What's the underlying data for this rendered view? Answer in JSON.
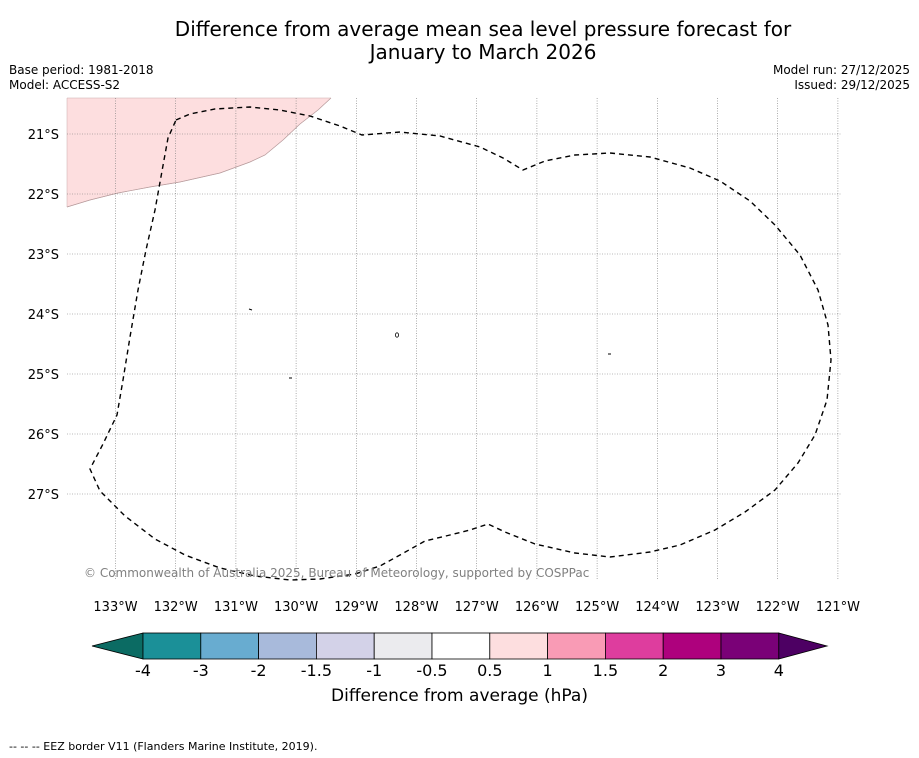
{
  "title": {
    "line1": "Difference from average mean sea level pressure forecast for",
    "line2": "January to March 2026"
  },
  "meta": {
    "base_period": "Base period: 1981-2018",
    "model": "Model: ACCESS-S2",
    "model_run": "Model run: 27/12/2025",
    "issued": "Issued: 29/12/2025"
  },
  "map": {
    "lat_ticks": [
      {
        "value": -21,
        "label": "21°S"
      },
      {
        "value": -22,
        "label": "22°S"
      },
      {
        "value": -23,
        "label": "23°S"
      },
      {
        "value": -24,
        "label": "24°S"
      },
      {
        "value": -25,
        "label": "25°S"
      },
      {
        "value": -26,
        "label": "26°S"
      },
      {
        "value": -27,
        "label": "27°S"
      }
    ],
    "lon_ticks": [
      {
        "value": -133,
        "label": "133°W"
      },
      {
        "value": -132,
        "label": "132°W"
      },
      {
        "value": -131,
        "label": "131°W"
      },
      {
        "value": -130,
        "label": "130°W"
      },
      {
        "value": -129,
        "label": "129°W"
      },
      {
        "value": -128,
        "label": "128°W"
      },
      {
        "value": -127,
        "label": "127°W"
      },
      {
        "value": -126,
        "label": "126°W"
      },
      {
        "value": -125,
        "label": "125°W"
      },
      {
        "value": -124,
        "label": "124°W"
      },
      {
        "value": -123,
        "label": "123°W"
      },
      {
        "value": -122,
        "label": "122°W"
      },
      {
        "value": -121,
        "label": "121°W"
      }
    ],
    "anomaly_region": {
      "category": "0.5 to 1",
      "color": "#fddedf"
    },
    "copyright": "© Commonwealth of Australia 2025, Bureau of Meteorology, supported by COSPPac"
  },
  "colorbar": {
    "title": "Difference from average (hPa)",
    "tick_labels": [
      "-4",
      "-3",
      "-2",
      "-1.5",
      "-1",
      "-0.5",
      "0.5",
      "1",
      "1.5",
      "2",
      "3",
      "4"
    ],
    "colors": [
      "#1b9098",
      "#68acd0",
      "#a8badb",
      "#d3d2e8",
      "#ebebee",
      "#ffffff",
      "#fddedf",
      "#f99bb5",
      "#de3d9e",
      "#ae017d",
      "#7a0177"
    ],
    "under_color": "#0b6b63",
    "over_color": "#4d0063"
  },
  "footer": {
    "legend_text": "--  --  -- EEZ border V11 (Flanders Marine Institute, 2019)."
  }
}
